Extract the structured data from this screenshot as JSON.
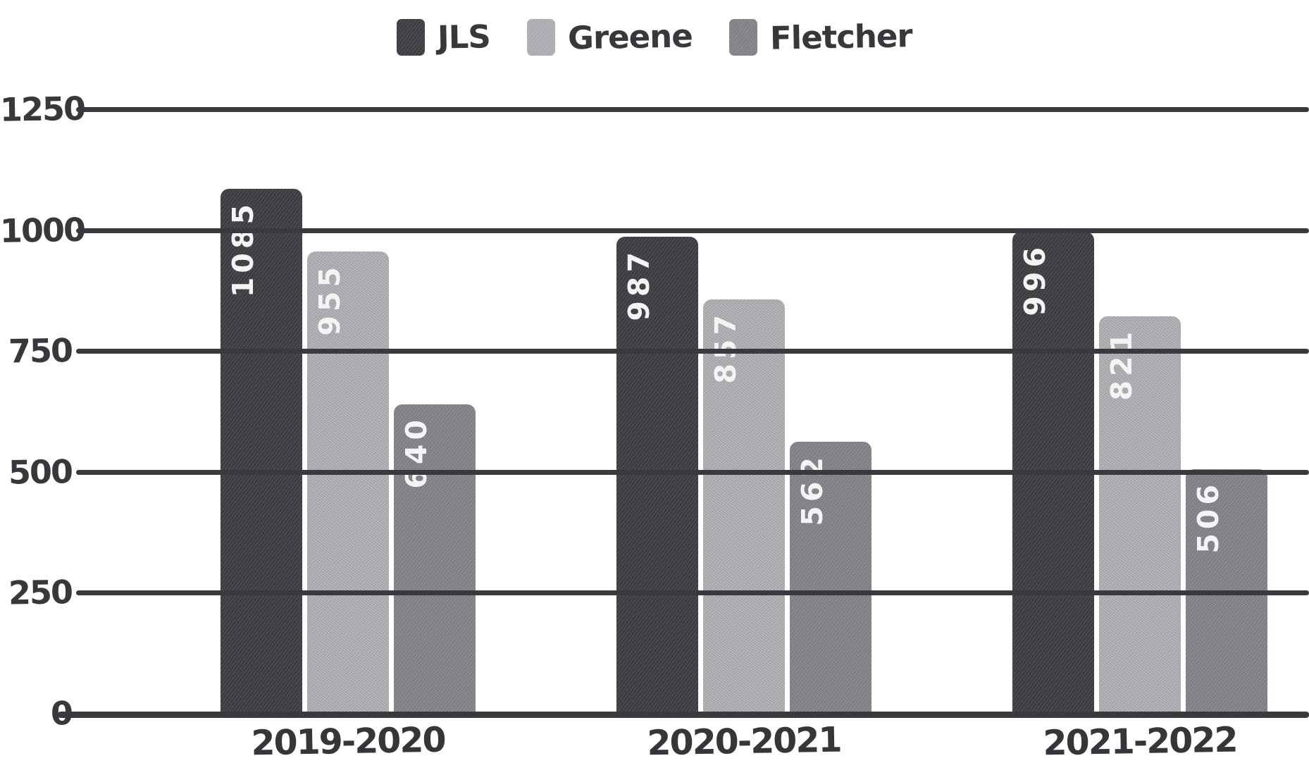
{
  "chart_data": {
    "type": "bar",
    "title": "",
    "xlabel": "",
    "ylabel": "",
    "categories": [
      "2019-2020",
      "2020-2021",
      "2021-2022"
    ],
    "series": [
      {
        "name": "JLS",
        "color": "#3E3E43",
        "values": [
          1085,
          987,
          996
        ]
      },
      {
        "name": "Greene",
        "color": "#B2B2B6",
        "values": [
          955,
          857,
          821
        ]
      },
      {
        "name": "Fletcher",
        "color": "#85858C",
        "values": [
          640,
          562,
          506
        ]
      }
    ],
    "yticks": [
      1250,
      1000,
      750,
      500,
      250,
      0
    ],
    "ylim": [
      0,
      1250
    ],
    "grid": true,
    "legend_position": "top",
    "style": "hand-drawn sketch, speckled bar texture, rotated white value labels inside bars",
    "colors": {
      "grid": "#3A3A3E",
      "tick_text": "#38383C",
      "bar_value_text": "#F4F4F4",
      "background": "#FFFFFF"
    }
  }
}
